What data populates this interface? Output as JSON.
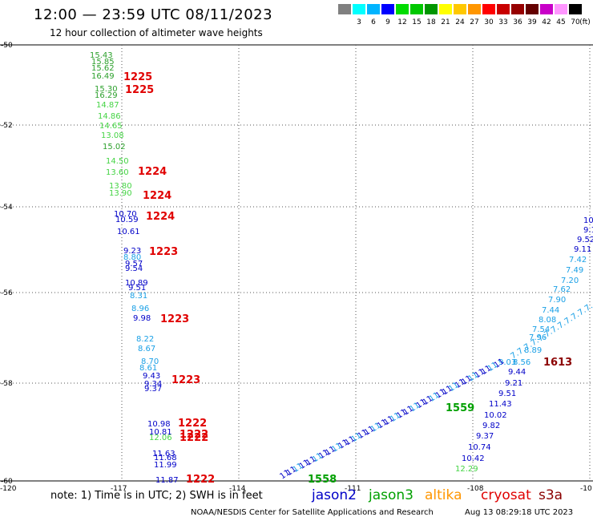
{
  "header": {
    "title": "12:00 — 23:59 UTC 08/11/2023",
    "subtitle": "12 hour collection of altimeter wave heights"
  },
  "color_scale": {
    "unit": "(ft)",
    "bins": [
      {
        "label": "",
        "color": "#808080"
      },
      {
        "label": "3",
        "color": "#00ffff"
      },
      {
        "label": "6",
        "color": "#00b4ff"
      },
      {
        "label": "9",
        "color": "#0000ff"
      },
      {
        "label": "12",
        "color": "#00dc00"
      },
      {
        "label": "15",
        "color": "#00c800"
      },
      {
        "label": "18",
        "color": "#009600"
      },
      {
        "label": "21",
        "color": "#ffff00"
      },
      {
        "label": "24",
        "color": "#ffc800"
      },
      {
        "label": "27",
        "color": "#ff9600"
      },
      {
        "label": "30",
        "color": "#ff0000"
      },
      {
        "label": "33",
        "color": "#c80000"
      },
      {
        "label": "36",
        "color": "#960000"
      },
      {
        "label": "39",
        "color": "#640000"
      },
      {
        "label": "42",
        "color": "#c800c8"
      },
      {
        "label": "45",
        "color": "#ff96ff"
      },
      {
        "label": "70",
        "color": "#000000"
      }
    ]
  },
  "map": {
    "lat_labels": [
      "-50",
      "-52",
      "-54",
      "-56",
      "-58",
      "-60"
    ],
    "lon_labels": [
      "-120",
      "-117",
      "-114",
      "-111",
      "-108",
      "-10"
    ],
    "tracks": [
      {
        "name": "track-west",
        "points": [
          {
            "text": "15.43",
            "color": "#2ca02c"
          },
          {
            "text": "15.85",
            "color": "#2ca02c"
          },
          {
            "text": "15.62",
            "color": "#2ca02c"
          },
          {
            "text": "16.49",
            "color": "#2ca02c"
          },
          {
            "text": "15.30",
            "color": "#2ca02c"
          },
          {
            "text": "16.29",
            "color": "#2ca02c"
          },
          {
            "text": "14.87",
            "color": "#44d444"
          },
          {
            "text": "14.86",
            "color": "#44d444"
          },
          {
            "text": "14.65",
            "color": "#44d444"
          },
          {
            "text": "13.08",
            "color": "#44d444"
          },
          {
            "text": "15.02",
            "color": "#2ca02c"
          },
          {
            "text": "14.50",
            "color": "#44d444"
          },
          {
            "text": "13.60",
            "color": "#44d444"
          },
          {
            "text": "13.80",
            "color": "#44d444"
          },
          {
            "text": "13.90",
            "color": "#44d444"
          },
          {
            "text": "10.70",
            "color": "#0000c8"
          },
          {
            "text": "10.59",
            "color": "#0000c8"
          },
          {
            "text": "10.61",
            "color": "#0000c8"
          },
          {
            "text": "9.23",
            "color": "#0000c8"
          },
          {
            "text": "8.80",
            "color": "#1aa0e6"
          },
          {
            "text": "9.57",
            "color": "#0000c8"
          },
          {
            "text": "9.54",
            "color": "#0000c8"
          },
          {
            "text": "10.89",
            "color": "#0000c8"
          },
          {
            "text": "9.51",
            "color": "#0000c8"
          },
          {
            "text": "8.31",
            "color": "#1aa0e6"
          },
          {
            "text": "8.96",
            "color": "#1aa0e6"
          },
          {
            "text": "9.98",
            "color": "#0000c8"
          },
          {
            "text": "8.22",
            "color": "#1aa0e6"
          },
          {
            "text": "8.67",
            "color": "#1aa0e6"
          },
          {
            "text": "8.70",
            "color": "#1aa0e6"
          },
          {
            "text": "8.61",
            "color": "#1aa0e6"
          },
          {
            "text": "9.43",
            "color": "#0000c8"
          },
          {
            "text": "9.34",
            "color": "#0000c8"
          },
          {
            "text": "9.37",
            "color": "#0000c8"
          },
          {
            "text": "10.98",
            "color": "#0000c8"
          },
          {
            "text": "10.81",
            "color": "#0000c8"
          },
          {
            "text": "12.06",
            "color": "#44d444"
          },
          {
            "text": "11.63",
            "color": "#0000c8"
          },
          {
            "text": "11.68",
            "color": "#0000c8"
          },
          {
            "text": "11.99",
            "color": "#0000c8"
          },
          {
            "text": "11.87",
            "color": "#0000c8"
          }
        ]
      },
      {
        "name": "track-east-upper",
        "points": [
          {
            "text": "10",
            "color": "#0000c8"
          },
          {
            "text": "9.1",
            "color": "#0000c8"
          },
          {
            "text": "9.52",
            "color": "#0000c8"
          },
          {
            "text": "9.11",
            "color": "#0000c8"
          },
          {
            "text": "7.42",
            "color": "#1aa0e6"
          },
          {
            "text": "7.49",
            "color": "#1aa0e6"
          },
          {
            "text": "7.20",
            "color": "#1aa0e6"
          },
          {
            "text": "7.62",
            "color": "#1aa0e6"
          },
          {
            "text": "7.90",
            "color": "#1aa0e6"
          },
          {
            "text": "7.44",
            "color": "#1aa0e6"
          },
          {
            "text": "8.08",
            "color": "#1aa0e6"
          },
          {
            "text": "7.54",
            "color": "#1aa0e6"
          },
          {
            "text": "7.96",
            "color": "#1aa0e6"
          },
          {
            "text": "8.89",
            "color": "#1aa0e6"
          },
          {
            "text": "9.03",
            "color": "#1aa0e6"
          },
          {
            "text": "8.56",
            "color": "#1aa0e6"
          }
        ]
      },
      {
        "name": "track-east-lower",
        "points": [
          {
            "text": "9.44",
            "color": "#0000c8"
          },
          {
            "text": "9.21",
            "color": "#0000c8"
          },
          {
            "text": "9.51",
            "color": "#0000c8"
          },
          {
            "text": "11.43",
            "color": "#0000c8"
          },
          {
            "text": "10.02",
            "color": "#0000c8"
          },
          {
            "text": "9.82",
            "color": "#0000c8"
          },
          {
            "text": "9.37",
            "color": "#0000c8"
          },
          {
            "text": "10.74",
            "color": "#0000c8"
          },
          {
            "text": "10.42",
            "color": "#0000c8"
          },
          {
            "text": "12.29",
            "color": "#44d444"
          }
        ]
      }
    ],
    "time_labels": [
      {
        "text": "1225",
        "color": "#e00000"
      },
      {
        "text": "1225",
        "color": "#e00000"
      },
      {
        "text": "1224",
        "color": "#e00000"
      },
      {
        "text": "1224",
        "color": "#e00000"
      },
      {
        "text": "1224",
        "color": "#e00000"
      },
      {
        "text": "1223",
        "color": "#e00000"
      },
      {
        "text": "1223",
        "color": "#e00000"
      },
      {
        "text": "1223",
        "color": "#e00000"
      },
      {
        "text": "1222",
        "color": "#e00000"
      },
      {
        "text": "1222",
        "color": "#e00000"
      },
      {
        "text": "1222",
        "color": "#e00000"
      },
      {
        "text": "1222",
        "color": "#e00000"
      },
      {
        "text": "1613",
        "color": "#8b0000"
      },
      {
        "text": "1559",
        "color": "#00a000"
      },
      {
        "text": "1558",
        "color": "#00a000"
      }
    ]
  },
  "footer": {
    "note": "note:  1) Time is in UTC;  2) SWH is in feet",
    "legend": [
      {
        "label": "jason2",
        "color": "#0000c8"
      },
      {
        "label": "jason3",
        "color": "#00a000"
      },
      {
        "label": "altika",
        "color": "#ff9600"
      },
      {
        "label": "cryosat",
        "color": "#e00000"
      },
      {
        "label": "s3a",
        "color": "#8b0000"
      }
    ],
    "credit": "NOAA/NESDIS Center for Satellite Applications and Research",
    "timestamp": "Aug 13 08:29:18 UTC 2023"
  }
}
